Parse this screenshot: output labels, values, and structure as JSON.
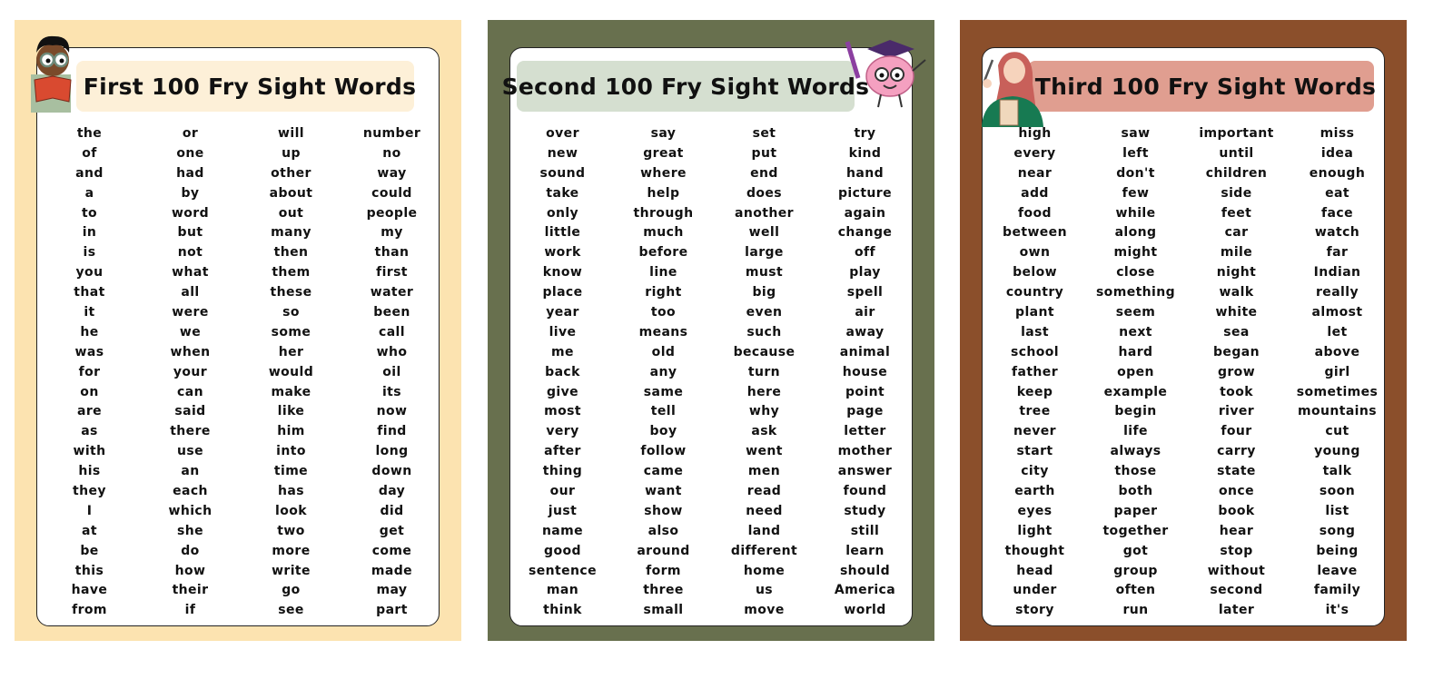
{
  "panels": [
    {
      "title": "First 100 Fry Sight Words",
      "bg": "#fce3b0",
      "title_bg": "#fdf0d8",
      "illustration": "boy-reading-book",
      "columns": [
        [
          "the",
          "of",
          "and",
          "a",
          "to",
          "in",
          "is",
          "you",
          "that",
          "it",
          "he",
          "was",
          "for",
          "on",
          "are",
          "as",
          "with",
          "his",
          "they",
          "I",
          "at",
          "be",
          "this",
          "have",
          "from"
        ],
        [
          "or",
          "one",
          "had",
          "by",
          "word",
          "but",
          "not",
          "what",
          "all",
          "were",
          "we",
          "when",
          "your",
          "can",
          "said",
          "there",
          "use",
          "an",
          "each",
          "which",
          "she",
          "do",
          "how",
          "their",
          "if"
        ],
        [
          "will",
          "up",
          "other",
          "about",
          "out",
          "many",
          "then",
          "them",
          "these",
          "so",
          "some",
          "her",
          "would",
          "make",
          "like",
          "him",
          "into",
          "time",
          "has",
          "look",
          "two",
          "more",
          "write",
          "go",
          "see"
        ],
        [
          "number",
          "no",
          "way",
          "could",
          "people",
          "my",
          "than",
          "first",
          "water",
          "been",
          "call",
          "who",
          "oil",
          "its",
          "now",
          "find",
          "long",
          "down",
          "day",
          "did",
          "get",
          "come",
          "made",
          "may",
          "part"
        ]
      ]
    },
    {
      "title": "Second 100 Fry Sight Words",
      "bg": "#68704e",
      "title_bg": "#d5dfd0",
      "illustration": "brain-graduate",
      "columns": [
        [
          "over",
          "new",
          "sound",
          "take",
          "only",
          "little",
          "work",
          "know",
          "place",
          "year",
          "live",
          "me",
          "back",
          "give",
          "most",
          "very",
          "after",
          "thing",
          "our",
          "just",
          "name",
          "good",
          "sentence",
          "man",
          "think"
        ],
        [
          "say",
          "great",
          "where",
          "help",
          "through",
          "much",
          "before",
          "line",
          "right",
          "too",
          "means",
          "old",
          "any",
          "same",
          "tell",
          "boy",
          "follow",
          "came",
          "want",
          "show",
          "also",
          "around",
          "form",
          "three",
          "small"
        ],
        [
          "set",
          "put",
          "end",
          "does",
          "another",
          "well",
          "large",
          "must",
          "big",
          "even",
          "such",
          "because",
          "turn",
          "here",
          "why",
          "ask",
          "went",
          "men",
          "read",
          "need",
          "land",
          "different",
          "home",
          "us",
          "move"
        ],
        [
          "try",
          "kind",
          "hand",
          "picture",
          "again",
          "change",
          "off",
          "play",
          "spell",
          "air",
          "away",
          "animal",
          "house",
          "point",
          "page",
          "letter",
          "mother",
          "answer",
          "found",
          "study",
          "still",
          "learn",
          "should",
          "America",
          "world"
        ]
      ]
    },
    {
      "title": "Third 100 Fry Sight Words",
      "bg": "#8b4f2b",
      "title_bg": "#e09e90",
      "illustration": "girl-thinking",
      "columns": [
        [
          "high",
          "every",
          "near",
          "add",
          "food",
          "between",
          "own",
          "below",
          "country",
          "plant",
          "last",
          "school",
          "father",
          "keep",
          "tree",
          "never",
          "start",
          "city",
          "earth",
          "eyes",
          "light",
          "thought",
          "head",
          "under",
          "story"
        ],
        [
          "saw",
          "left",
          "don't",
          "few",
          "while",
          "along",
          "might",
          "close",
          "something",
          "seem",
          "next",
          "hard",
          "open",
          "example",
          "begin",
          "life",
          "always",
          "those",
          "both",
          "paper",
          "together",
          "got",
          "group",
          "often",
          "run"
        ],
        [
          "important",
          "until",
          "children",
          "side",
          "feet",
          "car",
          "mile",
          "night",
          "walk",
          "white",
          "sea",
          "began",
          "grow",
          "took",
          "river",
          "four",
          "carry",
          "state",
          "once",
          "book",
          "hear",
          "stop",
          "without",
          "second",
          "later"
        ],
        [
          "miss",
          "idea",
          "enough",
          "eat",
          "face",
          "watch",
          "far",
          "Indian",
          "really",
          "almost",
          "let",
          "above",
          "girl",
          "sometimes",
          "mountains",
          "cut",
          "young",
          "talk",
          "soon",
          "list",
          "song",
          "being",
          "leave",
          "family",
          "it's"
        ]
      ]
    }
  ]
}
